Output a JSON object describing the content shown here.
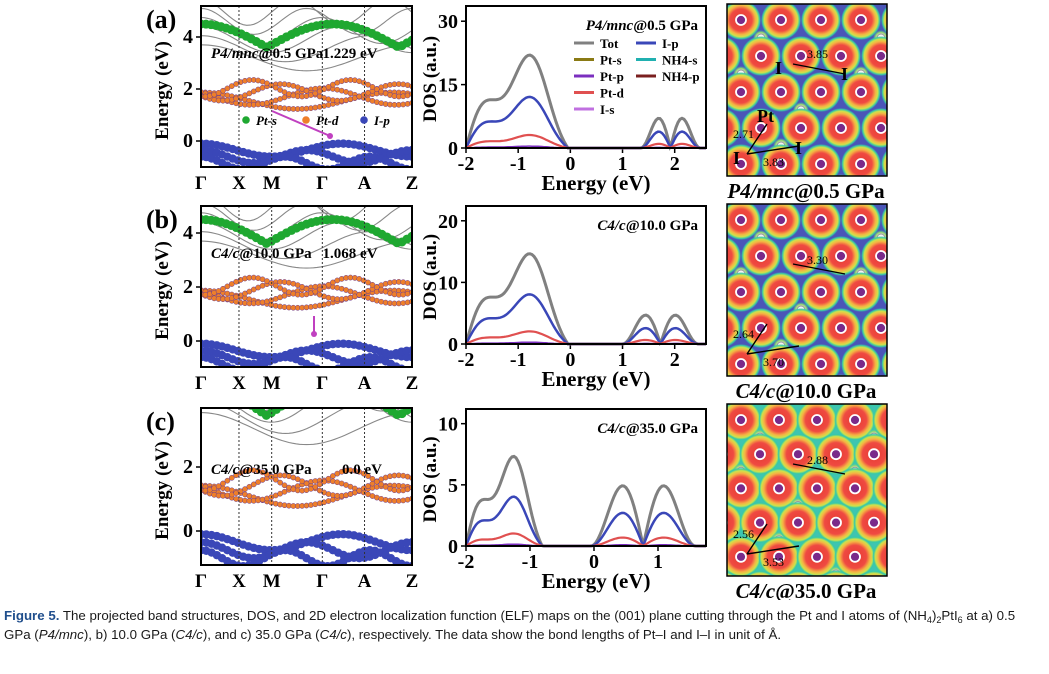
{
  "figure": {
    "panels": [
      {
        "label": "(a)",
        "band": {
          "phase": "P4/mnc",
          "pressure": "@0.5 GPa",
          "gap": "1.229 eV",
          "yticks": [
            "4",
            "2",
            "0"
          ],
          "ylabel": "Energy (eV)",
          "kpoints": [
            "Γ",
            "X",
            "M",
            "Γ",
            "A",
            "Z"
          ],
          "legend": [
            {
              "label": "Pt-s",
              "color": "#1fa831"
            },
            {
              "label": "Pt-d",
              "color": "#ee7f2a"
            },
            {
              "label": "I-p",
              "color": "#3a47b8"
            }
          ]
        },
        "dos": {
          "title": "P4/mnc@0.5 GPa",
          "ylabel": "DOS (a.u.)",
          "xlabel": "Energy (eV)",
          "yticks": [
            "30",
            "15",
            "0"
          ],
          "xticks": [
            "-2",
            "-1",
            "0",
            "1",
            "2"
          ],
          "legend": [
            {
              "label": "Tot",
              "color": "#808080"
            },
            {
              "label": "Pt-s",
              "color": "#8a7a14"
            },
            {
              "label": "Pt-p",
              "color": "#7b2fbf"
            },
            {
              "label": "Pt-d",
              "color": "#e05050"
            },
            {
              "label": "I-s",
              "color": "#c070e0"
            },
            {
              "label": "I-p",
              "color": "#3a47b8"
            },
            {
              "label": "NH4-s",
              "color": "#20b0b0"
            },
            {
              "label": "NH4-p",
              "color": "#7a1f1f"
            }
          ]
        },
        "elf": {
          "caption": "P4/mnc@0.5 GPa",
          "labels": {
            "pt": "Pt",
            "i1": "I",
            "i2": "I",
            "i3": "I",
            "i4": "I"
          },
          "bonds": {
            "i_i_long": "3.85",
            "pt_i": "2.71",
            "i_i_short": "3.83"
          }
        }
      },
      {
        "label": "(b)",
        "band": {
          "phase": "C4/c",
          "pressure": "@10.0 GPa",
          "gap": "1.068 eV",
          "yticks": [
            "4",
            "2",
            "0"
          ],
          "ylabel": "Energy (eV)",
          "kpoints": [
            "Γ",
            "X",
            "M",
            "Γ",
            "A",
            "Z"
          ]
        },
        "dos": {
          "title": "C4/c@10.0 GPa",
          "ylabel": "DOS (a.u.)",
          "xlabel": "Energy (eV)",
          "yticks": [
            "20",
            "10",
            "0"
          ],
          "xticks": [
            "-2",
            "-1",
            "0",
            "1",
            "2"
          ]
        },
        "elf": {
          "caption": "C4/c@10.0 GPa",
          "bonds": {
            "i_i_long": "3.30",
            "pt_i": "2.64",
            "i_i_short": "3.70"
          }
        }
      },
      {
        "label": "(c)",
        "band": {
          "phase": "C4/c",
          "pressure": "@35.0 GPa",
          "gap": "0.0 eV",
          "yticks": [
            "2",
            "0"
          ],
          "ylabel": "Energy (eV)",
          "kpoints": [
            "Γ",
            "X",
            "M",
            "Γ",
            "A",
            "Z"
          ]
        },
        "dos": {
          "title": "C4/c@35.0 GPa",
          "ylabel": "DOS (a.u.)",
          "xlabel": "Energy (eV)",
          "yticks": [
            "10",
            "5",
            "0"
          ],
          "xticks": [
            "-2",
            "-1",
            "0",
            "1"
          ]
        },
        "elf": {
          "caption": "C4/c@35.0 GPa",
          "bonds": {
            "i_i_long": "2.88",
            "pt_i": "2.56",
            "i_i_short": "3.53"
          }
        }
      }
    ]
  },
  "caption": {
    "label": "Figure 5.",
    "text": "The projected band structures, DOS, and 2D electron localization function (ELF) maps on the (001) plane cutting through the Pt and I atoms of (NH4)2PtI6 at a) 0.5 GPa (P4/mnc), b) 10.0 GPa (C4/c), and c) 35.0 GPa (C4/c), respectively. The data show the bond lengths of Pt–I and I–I in unit of Å."
  }
}
